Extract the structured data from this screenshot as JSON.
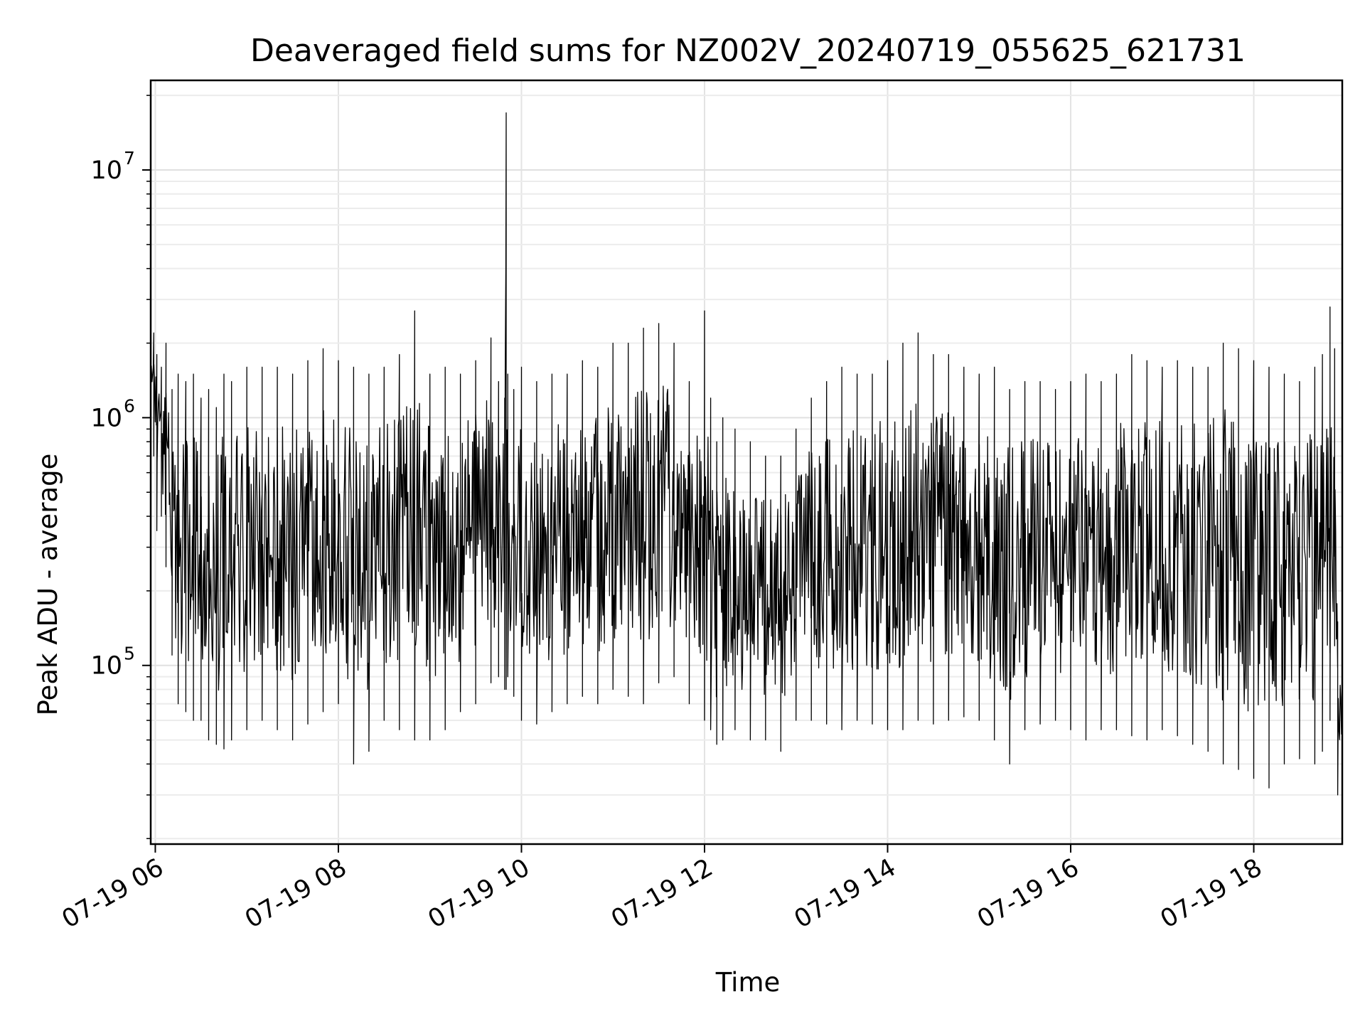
{
  "chart_data": {
    "type": "line",
    "title": "Deaveraged field sums for NZ002V_20240719_055625_621731",
    "xlabel": "Time",
    "ylabel": "Peak ADU - average",
    "xlim": [
      "2024-07-19 05:57",
      "2024-07-19 18:58"
    ],
    "ylim": [
      19000,
      23000000
    ],
    "yscale": "log",
    "grid": true,
    "line_color": "#000000",
    "x_ticks": [
      {
        "value": "2024-07-19 06:00",
        "label": "07-19 06"
      },
      {
        "value": "2024-07-19 08:00",
        "label": "07-19 08"
      },
      {
        "value": "2024-07-19 10:00",
        "label": "07-19 10"
      },
      {
        "value": "2024-07-19 12:00",
        "label": "07-19 12"
      },
      {
        "value": "2024-07-19 14:00",
        "label": "07-19 14"
      },
      {
        "value": "2024-07-19 16:00",
        "label": "07-19 16"
      },
      {
        "value": "2024-07-19 18:00",
        "label": "07-19 18"
      }
    ],
    "y_ticks": [
      {
        "value": 100000,
        "base": "10",
        "exp": "5"
      },
      {
        "value": 1000000,
        "base": "10",
        "exp": "6"
      },
      {
        "value": 10000000,
        "base": "10",
        "exp": "7"
      }
    ],
    "series": [
      {
        "x": [
          "2024-07-19 05:57",
          "2024-07-19 05:59",
          "2024-07-19 06:01",
          "2024-07-19 06:04",
          "2024-07-19 06:07",
          "2024-07-19 06:11",
          "2024-07-19 06:15",
          "2024-07-19 06:20",
          "2024-07-19 06:25",
          "2024-07-19 06:30",
          "2024-07-19 06:35",
          "2024-07-19 06:40",
          "2024-07-19 06:45",
          "2024-07-19 06:50",
          "2024-07-19 07:00",
          "2024-07-19 07:10",
          "2024-07-19 07:20",
          "2024-07-19 07:30",
          "2024-07-19 07:40",
          "2024-07-19 07:50",
          "2024-07-19 08:00",
          "2024-07-19 08:10",
          "2024-07-19 08:20",
          "2024-07-19 08:30",
          "2024-07-19 08:40",
          "2024-07-19 08:50",
          "2024-07-19 09:00",
          "2024-07-19 09:10",
          "2024-07-19 09:20",
          "2024-07-19 09:30",
          "2024-07-19 09:40",
          "2024-07-19 09:45",
          "2024-07-19 09:49",
          "2024-07-19 09:50",
          "2024-07-19 09:51",
          "2024-07-19 09:55",
          "2024-07-19 10:00",
          "2024-07-19 10:10",
          "2024-07-19 10:20",
          "2024-07-19 10:30",
          "2024-07-19 10:40",
          "2024-07-19 10:50",
          "2024-07-19 11:00",
          "2024-07-19 11:10",
          "2024-07-19 11:20",
          "2024-07-19 11:30",
          "2024-07-19 11:40",
          "2024-07-19 11:50",
          "2024-07-19 12:00",
          "2024-07-19 12:04",
          "2024-07-19 12:08",
          "2024-07-19 12:12",
          "2024-07-19 12:20",
          "2024-07-19 12:30",
          "2024-07-19 12:40",
          "2024-07-19 12:50",
          "2024-07-19 13:00",
          "2024-07-19 13:10",
          "2024-07-19 13:20",
          "2024-07-19 13:30",
          "2024-07-19 13:40",
          "2024-07-19 13:50",
          "2024-07-19 14:00",
          "2024-07-19 14:10",
          "2024-07-19 14:20",
          "2024-07-19 14:30",
          "2024-07-19 14:40",
          "2024-07-19 14:50",
          "2024-07-19 15:00",
          "2024-07-19 15:10",
          "2024-07-19 15:20",
          "2024-07-19 15:30",
          "2024-07-19 15:40",
          "2024-07-19 15:50",
          "2024-07-19 16:00",
          "2024-07-19 16:10",
          "2024-07-19 16:20",
          "2024-07-19 16:30",
          "2024-07-19 16:40",
          "2024-07-19 16:50",
          "2024-07-19 17:00",
          "2024-07-19 17:10",
          "2024-07-19 17:20",
          "2024-07-19 17:30",
          "2024-07-19 17:40",
          "2024-07-19 17:50",
          "2024-07-19 18:00",
          "2024-07-19 18:10",
          "2024-07-19 18:20",
          "2024-07-19 18:30",
          "2024-07-19 18:40",
          "2024-07-19 18:45",
          "2024-07-19 18:50",
          "2024-07-19 18:53",
          "2024-07-19 18:55",
          "2024-07-19 18:58"
        ],
        "y_high": [
          3000000,
          2200000,
          1800000,
          1600000,
          2000000,
          1300000,
          1500000,
          1400000,
          1500000,
          1200000,
          1300000,
          1100000,
          1500000,
          1400000,
          1600000,
          1600000,
          1600000,
          1500000,
          1700000,
          1900000,
          1700000,
          1600000,
          1500000,
          1600000,
          1800000,
          2700000,
          1500000,
          1600000,
          1500000,
          1700000,
          2100000,
          1400000,
          1200000,
          17000000,
          1500000,
          1300000,
          1600000,
          1400000,
          1500000,
          1500000,
          1700000,
          1600000,
          2000000,
          2000000,
          2300000,
          2400000,
          2000000,
          1400000,
          2700000,
          1200000,
          800000,
          1000000,
          900000,
          800000,
          700000,
          700000,
          900000,
          1200000,
          1400000,
          1600000,
          1500000,
          1500000,
          1700000,
          2000000,
          2200000,
          1800000,
          1800000,
          1600000,
          1500000,
          1600000,
          1300000,
          1400000,
          1400000,
          1300000,
          1400000,
          1500000,
          1400000,
          1500000,
          1800000,
          1700000,
          1600000,
          1700000,
          1600000,
          1600000,
          2000000,
          1900000,
          1700000,
          1600000,
          1500000,
          1400000,
          1600000,
          1800000,
          2800000,
          1900000,
          150000,
          90000
        ],
        "y_low": [
          1500000,
          700000,
          350000,
          400000,
          250000,
          110000,
          70000,
          65000,
          60000,
          60000,
          50000,
          48000,
          46000,
          50000,
          55000,
          60000,
          55000,
          50000,
          58000,
          65000,
          70000,
          40000,
          45000,
          60000,
          55000,
          50000,
          50000,
          55000,
          65000,
          70000,
          85000,
          90000,
          80000,
          80000,
          90000,
          75000,
          60000,
          58000,
          65000,
          70000,
          75000,
          70000,
          80000,
          75000,
          70000,
          85000,
          90000,
          70000,
          60000,
          55000,
          48000,
          50000,
          55000,
          50000,
          50000,
          45000,
          60000,
          60000,
          58000,
          55000,
          60000,
          58000,
          55000,
          55000,
          60000,
          58000,
          60000,
          62000,
          60000,
          50000,
          40000,
          55000,
          58000,
          60000,
          55000,
          50000,
          55000,
          55000,
          52000,
          50000,
          55000,
          52000,
          48000,
          45000,
          40000,
          38000,
          35000,
          32000,
          40000,
          42000,
          40000,
          45000,
          60000,
          120000,
          30000,
          25000
        ]
      }
    ]
  }
}
